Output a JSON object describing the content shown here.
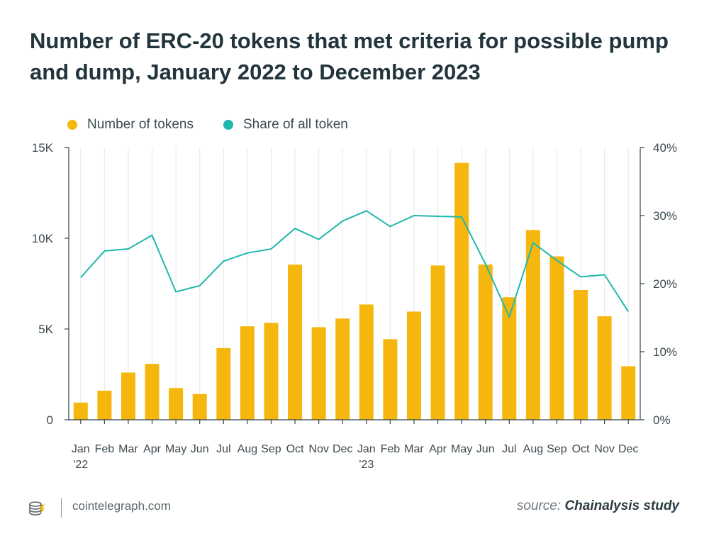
{
  "title": "Number of ERC-20 tokens that met criteria for possible pump and dump, January 2022 to December 2023",
  "footer": {
    "site": "cointelegraph.com",
    "source_label": "source:",
    "source_name": "Chainalysis study"
  },
  "colors": {
    "bar": "#F5B70E",
    "line": "#1FB8AC",
    "axis": "#2F4650",
    "grid": "#E5E8EA"
  },
  "chart_data": {
    "type": "bar",
    "categories": [
      "Jan",
      "Feb",
      "Mar",
      "Apr",
      "May",
      "Jun",
      "Jul",
      "Aug",
      "Sep",
      "Oct",
      "Nov",
      "Dec",
      "Jan",
      "Feb",
      "Mar",
      "Apr",
      "May",
      "Jun",
      "Jul",
      "Aug",
      "Sep",
      "Oct",
      "Nov",
      "Dec"
    ],
    "year_labels": [
      "'22",
      "",
      "",
      "",
      "",
      "",
      "",
      "",
      "",
      "",
      "",
      "",
      "'23",
      "",
      "",
      "",
      "",
      "",
      "",
      "",
      "",
      "",
      "",
      ""
    ],
    "legend": [
      "Number of tokens",
      "Share of all token"
    ],
    "series": [
      {
        "name": "Number of tokens",
        "type": "bar",
        "axis": "left",
        "values": [
          950,
          1600,
          2600,
          3080,
          1750,
          1420,
          3950,
          5150,
          5340,
          8550,
          5100,
          5580,
          6350,
          4440,
          5960,
          8500,
          14150,
          8550,
          6750,
          10450,
          9000,
          7150,
          5700,
          2950
        ]
      },
      {
        "name": "Share of all token",
        "type": "line",
        "axis": "right",
        "values": [
          20.9,
          24.8,
          25.1,
          27.1,
          18.8,
          19.7,
          23.3,
          24.5,
          25.1,
          28.1,
          26.5,
          29.2,
          30.7,
          28.4,
          30.0,
          29.9,
          29.8,
          22.9,
          15.1,
          26.0,
          23.4,
          21.0,
          21.3,
          15.9
        ]
      }
    ],
    "y_left": {
      "ylim": [
        0,
        15000
      ],
      "ticks": [
        0,
        5000,
        10000,
        15000
      ],
      "tick_labels": [
        "0",
        "5K",
        "10K",
        "15K"
      ]
    },
    "y_right": {
      "ylim": [
        0,
        40
      ],
      "ticks": [
        0,
        10,
        20,
        30,
        40
      ],
      "tick_labels": [
        "0%",
        "10%",
        "20%",
        "30%",
        "40%"
      ]
    },
    "grid": {
      "vertical": true,
      "horizontal": false
    },
    "legend_position": "top-left"
  }
}
